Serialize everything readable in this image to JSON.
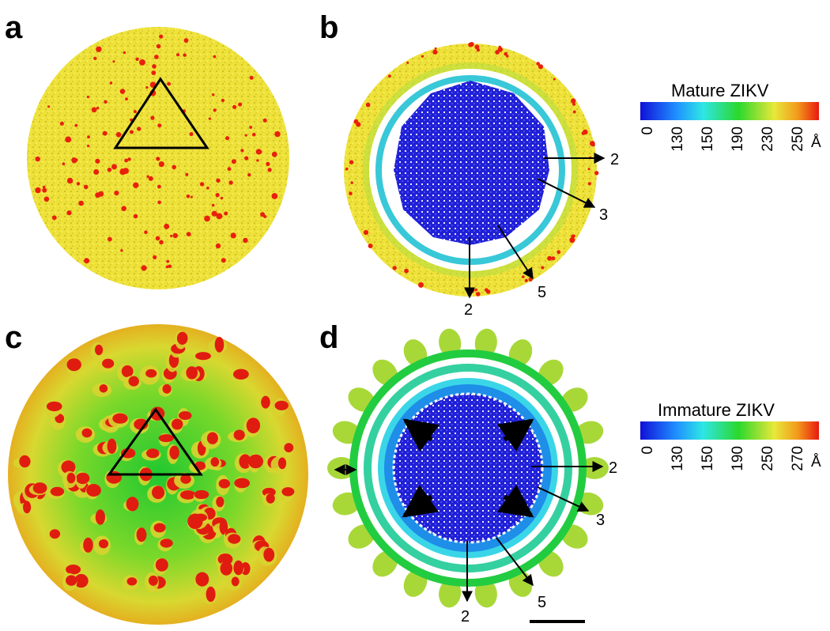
{
  "panels": {
    "a": "a",
    "b": "b",
    "c": "c",
    "d": "d"
  },
  "colorbars": {
    "mature": {
      "title": "Mature ZIKV",
      "ticks": [
        "0",
        "130",
        "150",
        "190",
        "230",
        "250"
      ],
      "unit": "Å"
    },
    "immature": {
      "title": "Immature ZIKV",
      "ticks": [
        "0",
        "130",
        "150",
        "190",
        "250",
        "270"
      ],
      "unit": "Å"
    }
  },
  "axis_labels_b": {
    "two_fold_right": "2",
    "three_fold": "3",
    "five_fold": "5",
    "two_fold_bottom": "2"
  },
  "axis_labels_d": {
    "two_fold_right": "2",
    "three_fold": "3",
    "five_fold": "5",
    "two_fold_bottom": "2"
  },
  "colors": {
    "blue": "#1a1ad8",
    "cyan": "#3ad6e8",
    "green": "#22d43a",
    "yellow": "#f0e43c",
    "red": "#e8200c"
  }
}
